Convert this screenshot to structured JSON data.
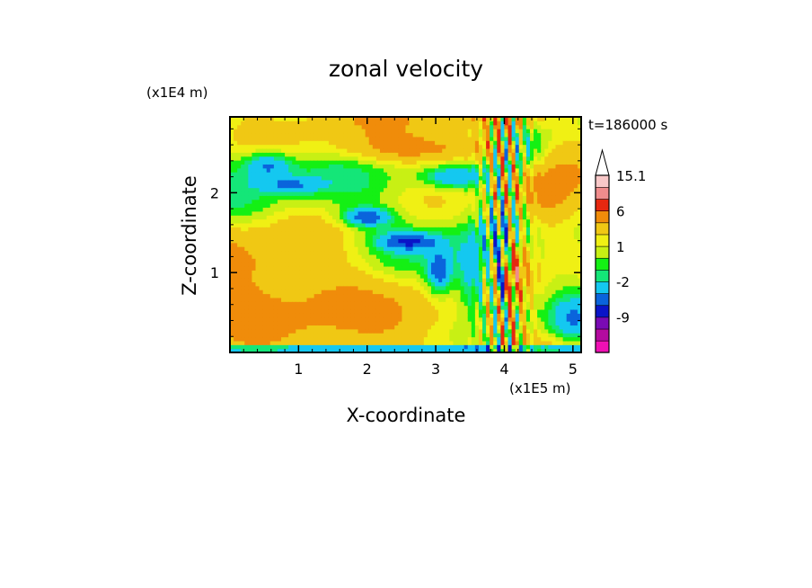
{
  "chart_data": {
    "type": "heatmap",
    "title": "zonal velocity",
    "time_label": "t=186000 s",
    "xlabel": "X-coordinate",
    "ylabel": "Z-coordinate",
    "x_scale_label": "(x1E5 m)",
    "y_scale_label": "(x1E4 m)",
    "xlim": [
      0,
      5.12
    ],
    "ylim": [
      0,
      2.95
    ],
    "x_ticks": [
      1,
      2,
      3,
      4,
      5
    ],
    "y_ticks": [
      1,
      2
    ],
    "grid": false,
    "colorbar": {
      "levels": [
        -15,
        -12,
        -9,
        -6,
        -4,
        -2,
        -1,
        0,
        1,
        2,
        4,
        6,
        9,
        12,
        15.1
      ],
      "colors": [
        "#f010b4",
        "#b40aa0",
        "#7a0ab4",
        "#0a14c8",
        "#0a64dc",
        "#14c8f0",
        "#14e678",
        "#14f014",
        "#c8f014",
        "#f0f014",
        "#f0c814",
        "#f08c0a",
        "#e62810",
        "#f08c8c",
        "#f8c8c8"
      ],
      "labels": [
        "15.1",
        "6",
        "1",
        "-2",
        "-9"
      ],
      "extend": "max"
    }
  }
}
